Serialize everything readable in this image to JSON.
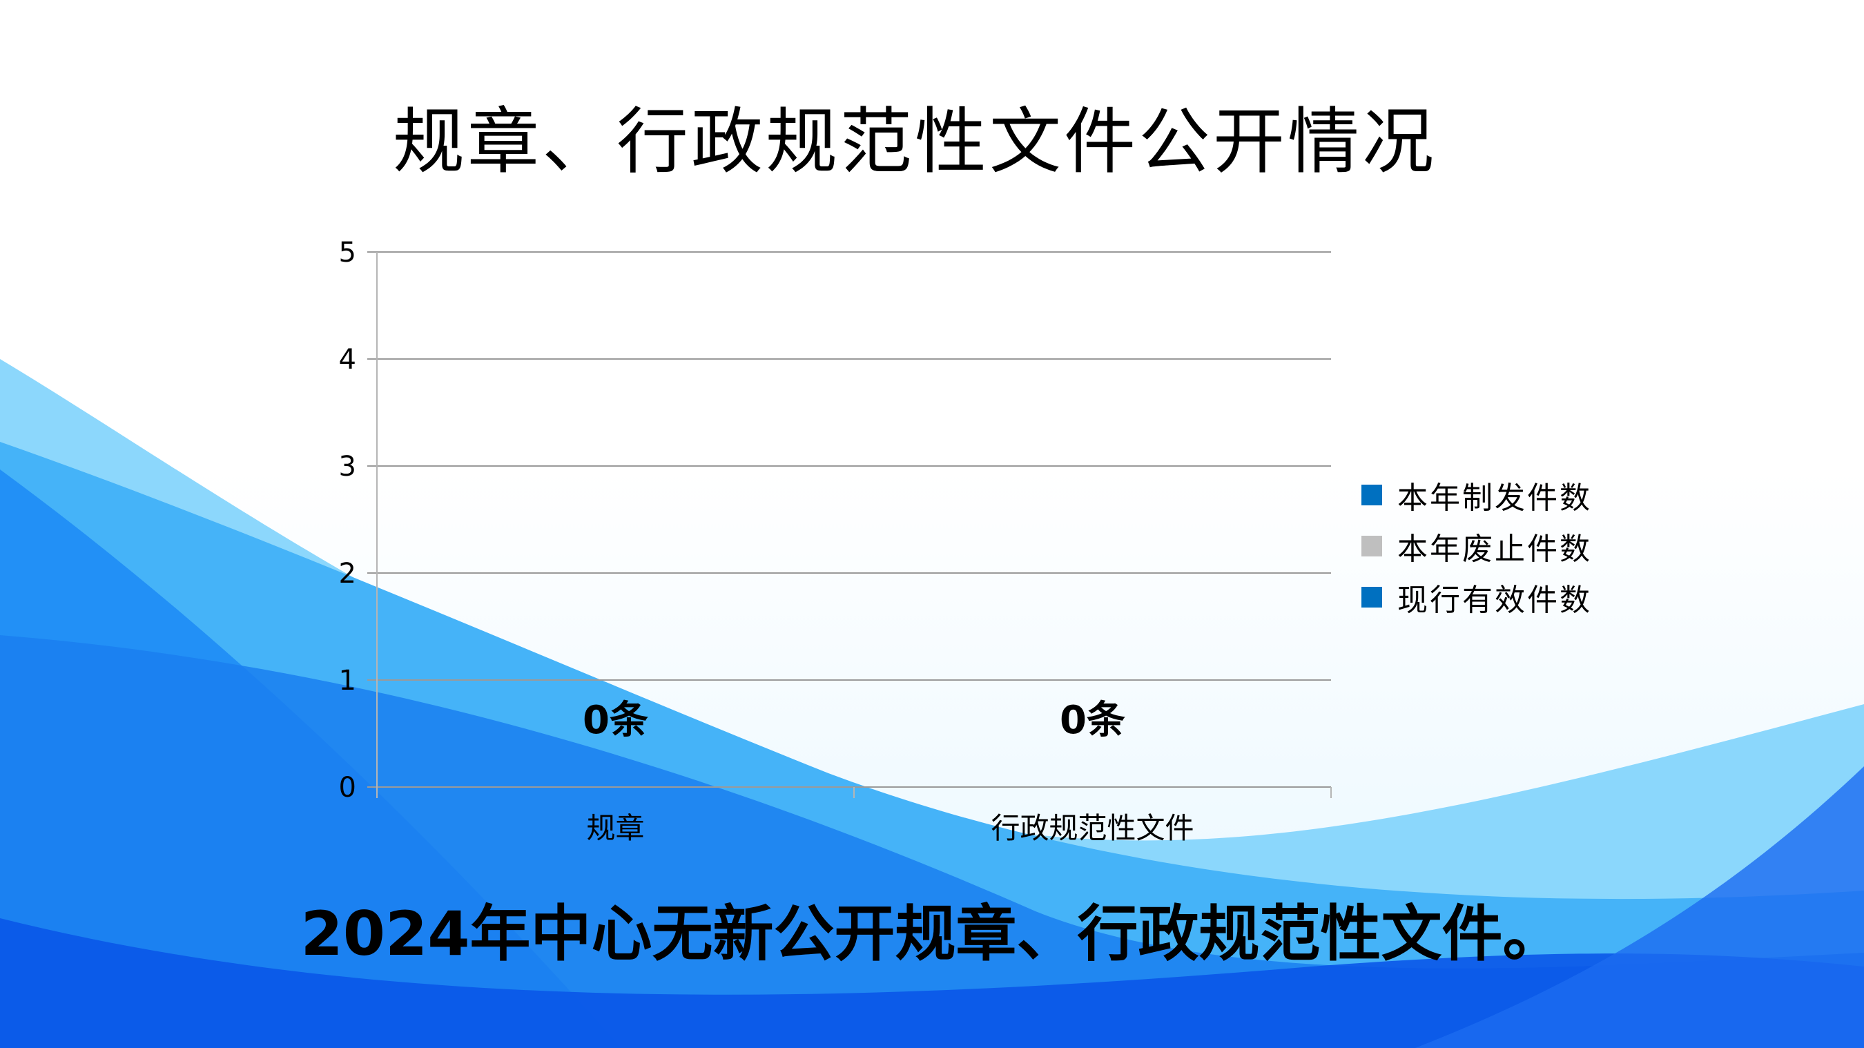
{
  "title": "规章、行政规范性文件公开情况",
  "footer_text": "2024年中心无新公开规章、行政规范性文件。",
  "chart_data": {
    "type": "bar",
    "title": "规章、行政规范性文件公开情况",
    "categories": [
      "规章",
      "行政规范性文件"
    ],
    "series": [
      {
        "name": "本年制发件数",
        "values": [
          0,
          0
        ],
        "color": "#0070C0"
      },
      {
        "name": "本年废止件数",
        "values": [
          0,
          0
        ],
        "color": "#BFBFBF"
      },
      {
        "name": "现行有效件数",
        "values": [
          0,
          0
        ],
        "color": "#0070C0"
      }
    ],
    "data_labels": [
      "0条",
      "0条"
    ],
    "ylim": [
      0,
      5
    ],
    "yticks": [
      "0",
      "1",
      "2",
      "3",
      "4",
      "5"
    ],
    "grid": true,
    "legend_position": "right"
  }
}
